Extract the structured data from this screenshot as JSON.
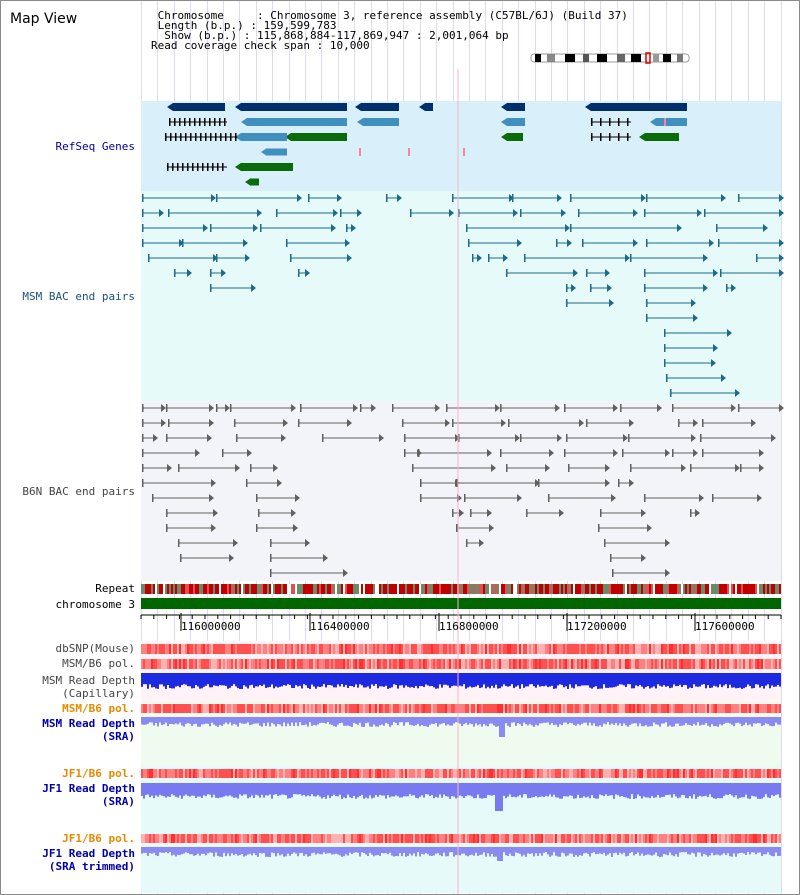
{
  "title": "Map View",
  "info": {
    "chromosome_label": "Chromosome",
    "chromosome_value": "Chromosome 3, reference assembly (C57BL/6J) (Build 37)",
    "length_label": "Length (b.p.)",
    "length_value": "159,599,783",
    "show_label": "Show (b.p.)",
    "show_value": "115,868,884-117,869,947 : 2,001,064 bp",
    "coverage_label": "Read coverage check span",
    "coverage_value": "10,000"
  },
  "tracks": {
    "refseq": "RefSeq Genes",
    "msm_bac": "MSM BAC end pairs",
    "b6n_bac": "B6N BAC end pairs",
    "repeat": "Repeat",
    "chromosome": "chromosome 3",
    "dbsnp": "dbSNP(Mouse)",
    "msm_pol": "MSM/B6 pol.",
    "msm_depth_cap": "MSM Read Depth\n(Capillary)",
    "msm_pol2": "MSM/B6 pol.",
    "msm_depth_sra": "MSM Read Depth\n(SRA)",
    "jf1_pol": "JF1/B6 pol.",
    "jf1_depth_sra": "JF1 Read Depth\n(SRA)",
    "jf1_pol2": "JF1/B6 pol.",
    "jf1_depth_trim": "JF1 Read Depth\n(SRA trimmed)"
  },
  "axis": {
    "ticks": [
      "116000000",
      "116400000",
      "116800000",
      "117200000",
      "117600000"
    ]
  },
  "colors": {
    "refseq_bg": "#d9f0fa",
    "msm_bg": "#e6fafa",
    "b6n_bg": "#f3f3fa",
    "gene_dark": "#002f6c",
    "gene_mid": "#3f8fbf",
    "gene_green": "#0a6b0a",
    "bac_msm": "#1c6b8a",
    "bac_b6n": "#606060",
    "chrom": "#006600",
    "label_blue": "#000099",
    "label_teal": "#1c4f7a",
    "label_orange": "#e88a00",
    "depth_blue": "#2020e0",
    "depth_light": "#8080f0"
  }
}
